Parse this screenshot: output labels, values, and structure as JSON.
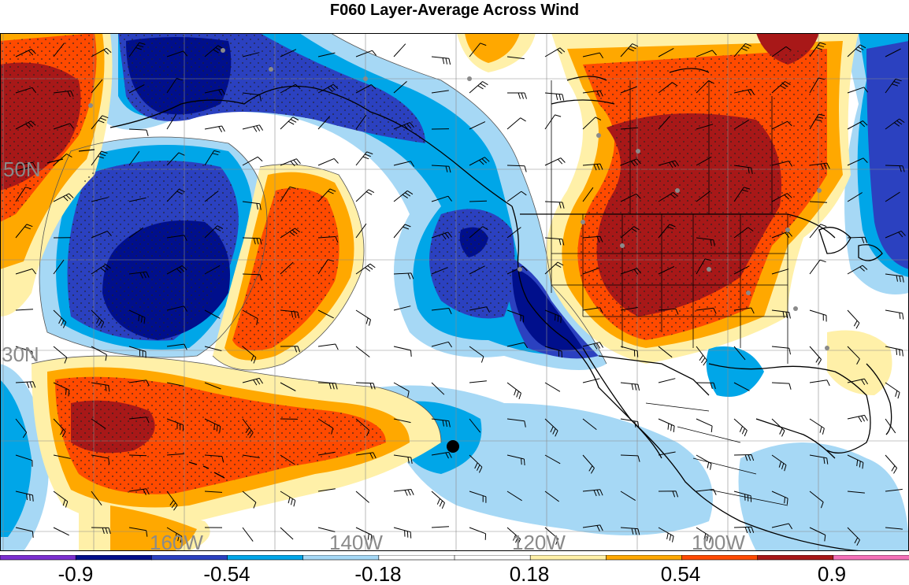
{
  "title": "F060 Layer-Average Across Wind",
  "colors": {
    "bins": [
      "#7b2fd0",
      "#000f8c",
      "#2b41c0",
      "#00a6e8",
      "#a6d8f5",
      "#ffffff",
      "#ffffff",
      "#fff0a8",
      "#ffa800",
      "#ff4a00",
      "#a81818",
      "#f470b8"
    ],
    "coastline": "#000000",
    "grid": "#8a8a8a",
    "background": "#ffffff"
  },
  "map": {
    "lat_labels": [
      "50N",
      "30N"
    ],
    "lon_labels": [
      "160W",
      "140W",
      "120W",
      "100W"
    ]
  },
  "colorbar": {
    "labels": [
      "-0.9",
      "-0.54",
      "-0.18",
      "0.18",
      "0.54",
      "0.9"
    ]
  }
}
